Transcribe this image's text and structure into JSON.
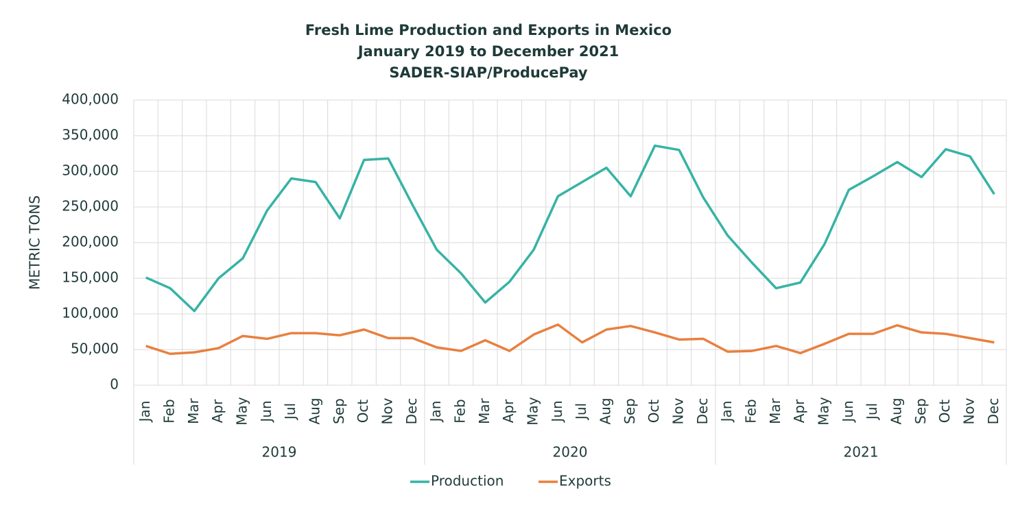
{
  "chart_data": {
    "type": "line",
    "title": "Fresh Lime Production and Exports in Mexico",
    "subtitle": [
      "January 2019 to December 2021",
      "SADER-SIAP/ProducePay"
    ],
    "y_label": "METRIC TONS",
    "categories": [
      "Jan",
      "Feb",
      "Mar",
      "Apr",
      "May",
      "Jun",
      "Jul",
      "Aug",
      "Sep",
      "Oct",
      "Nov",
      "Dec",
      "Jan",
      "Feb",
      "Mar",
      "Apr",
      "May",
      "Jun",
      "Jul",
      "Aug",
      "Sep",
      "Oct",
      "Nov",
      "Dec",
      "Jan",
      "Feb",
      "Mar",
      "Apr",
      "May",
      "Jun",
      "Jul",
      "Aug",
      "Sep",
      "Oct",
      "Nov",
      "Dec"
    ],
    "x_groups": [
      "2019",
      "2020",
      "2021"
    ],
    "series": [
      {
        "name": "Production",
        "color": "#36b3a5",
        "values": [
          151000,
          136000,
          104000,
          150000,
          178000,
          245000,
          290000,
          285000,
          234000,
          316000,
          318000,
          253000,
          190000,
          157000,
          116000,
          145000,
          190000,
          265000,
          285000,
          305000,
          265000,
          336000,
          330000,
          263000,
          210000,
          172000,
          136000,
          144000,
          198000,
          274000,
          293000,
          313000,
          292000,
          331000,
          321000,
          268000
        ]
      },
      {
        "name": "Exports",
        "color": "#e8803f",
        "values": [
          55000,
          44000,
          46000,
          52000,
          69000,
          65000,
          73000,
          73000,
          70000,
          78000,
          66000,
          66000,
          53000,
          48000,
          63000,
          48000,
          71000,
          85000,
          60000,
          78000,
          83000,
          74000,
          64000,
          65000,
          47000,
          48000,
          55000,
          45000,
          58000,
          72000,
          72000,
          84000,
          74000,
          72000,
          66000,
          60000
        ]
      }
    ],
    "ylim": [
      0,
      400000
    ],
    "yticks": [
      0,
      {
        "value": 50000,
        "label": "50,000"
      },
      {
        "value": 100000,
        "label": "100,000"
      },
      {
        "value": 150000,
        "label": "150,000"
      },
      {
        "value": 200000,
        "label": "200,000"
      },
      {
        "value": 250000,
        "label": "250,000"
      },
      {
        "value": 300000,
        "label": "300,000"
      },
      {
        "value": 350000,
        "label": "350,000"
      },
      {
        "value": 400000,
        "label": "400,000"
      }
    ],
    "grid": true,
    "legend": "bottom"
  }
}
